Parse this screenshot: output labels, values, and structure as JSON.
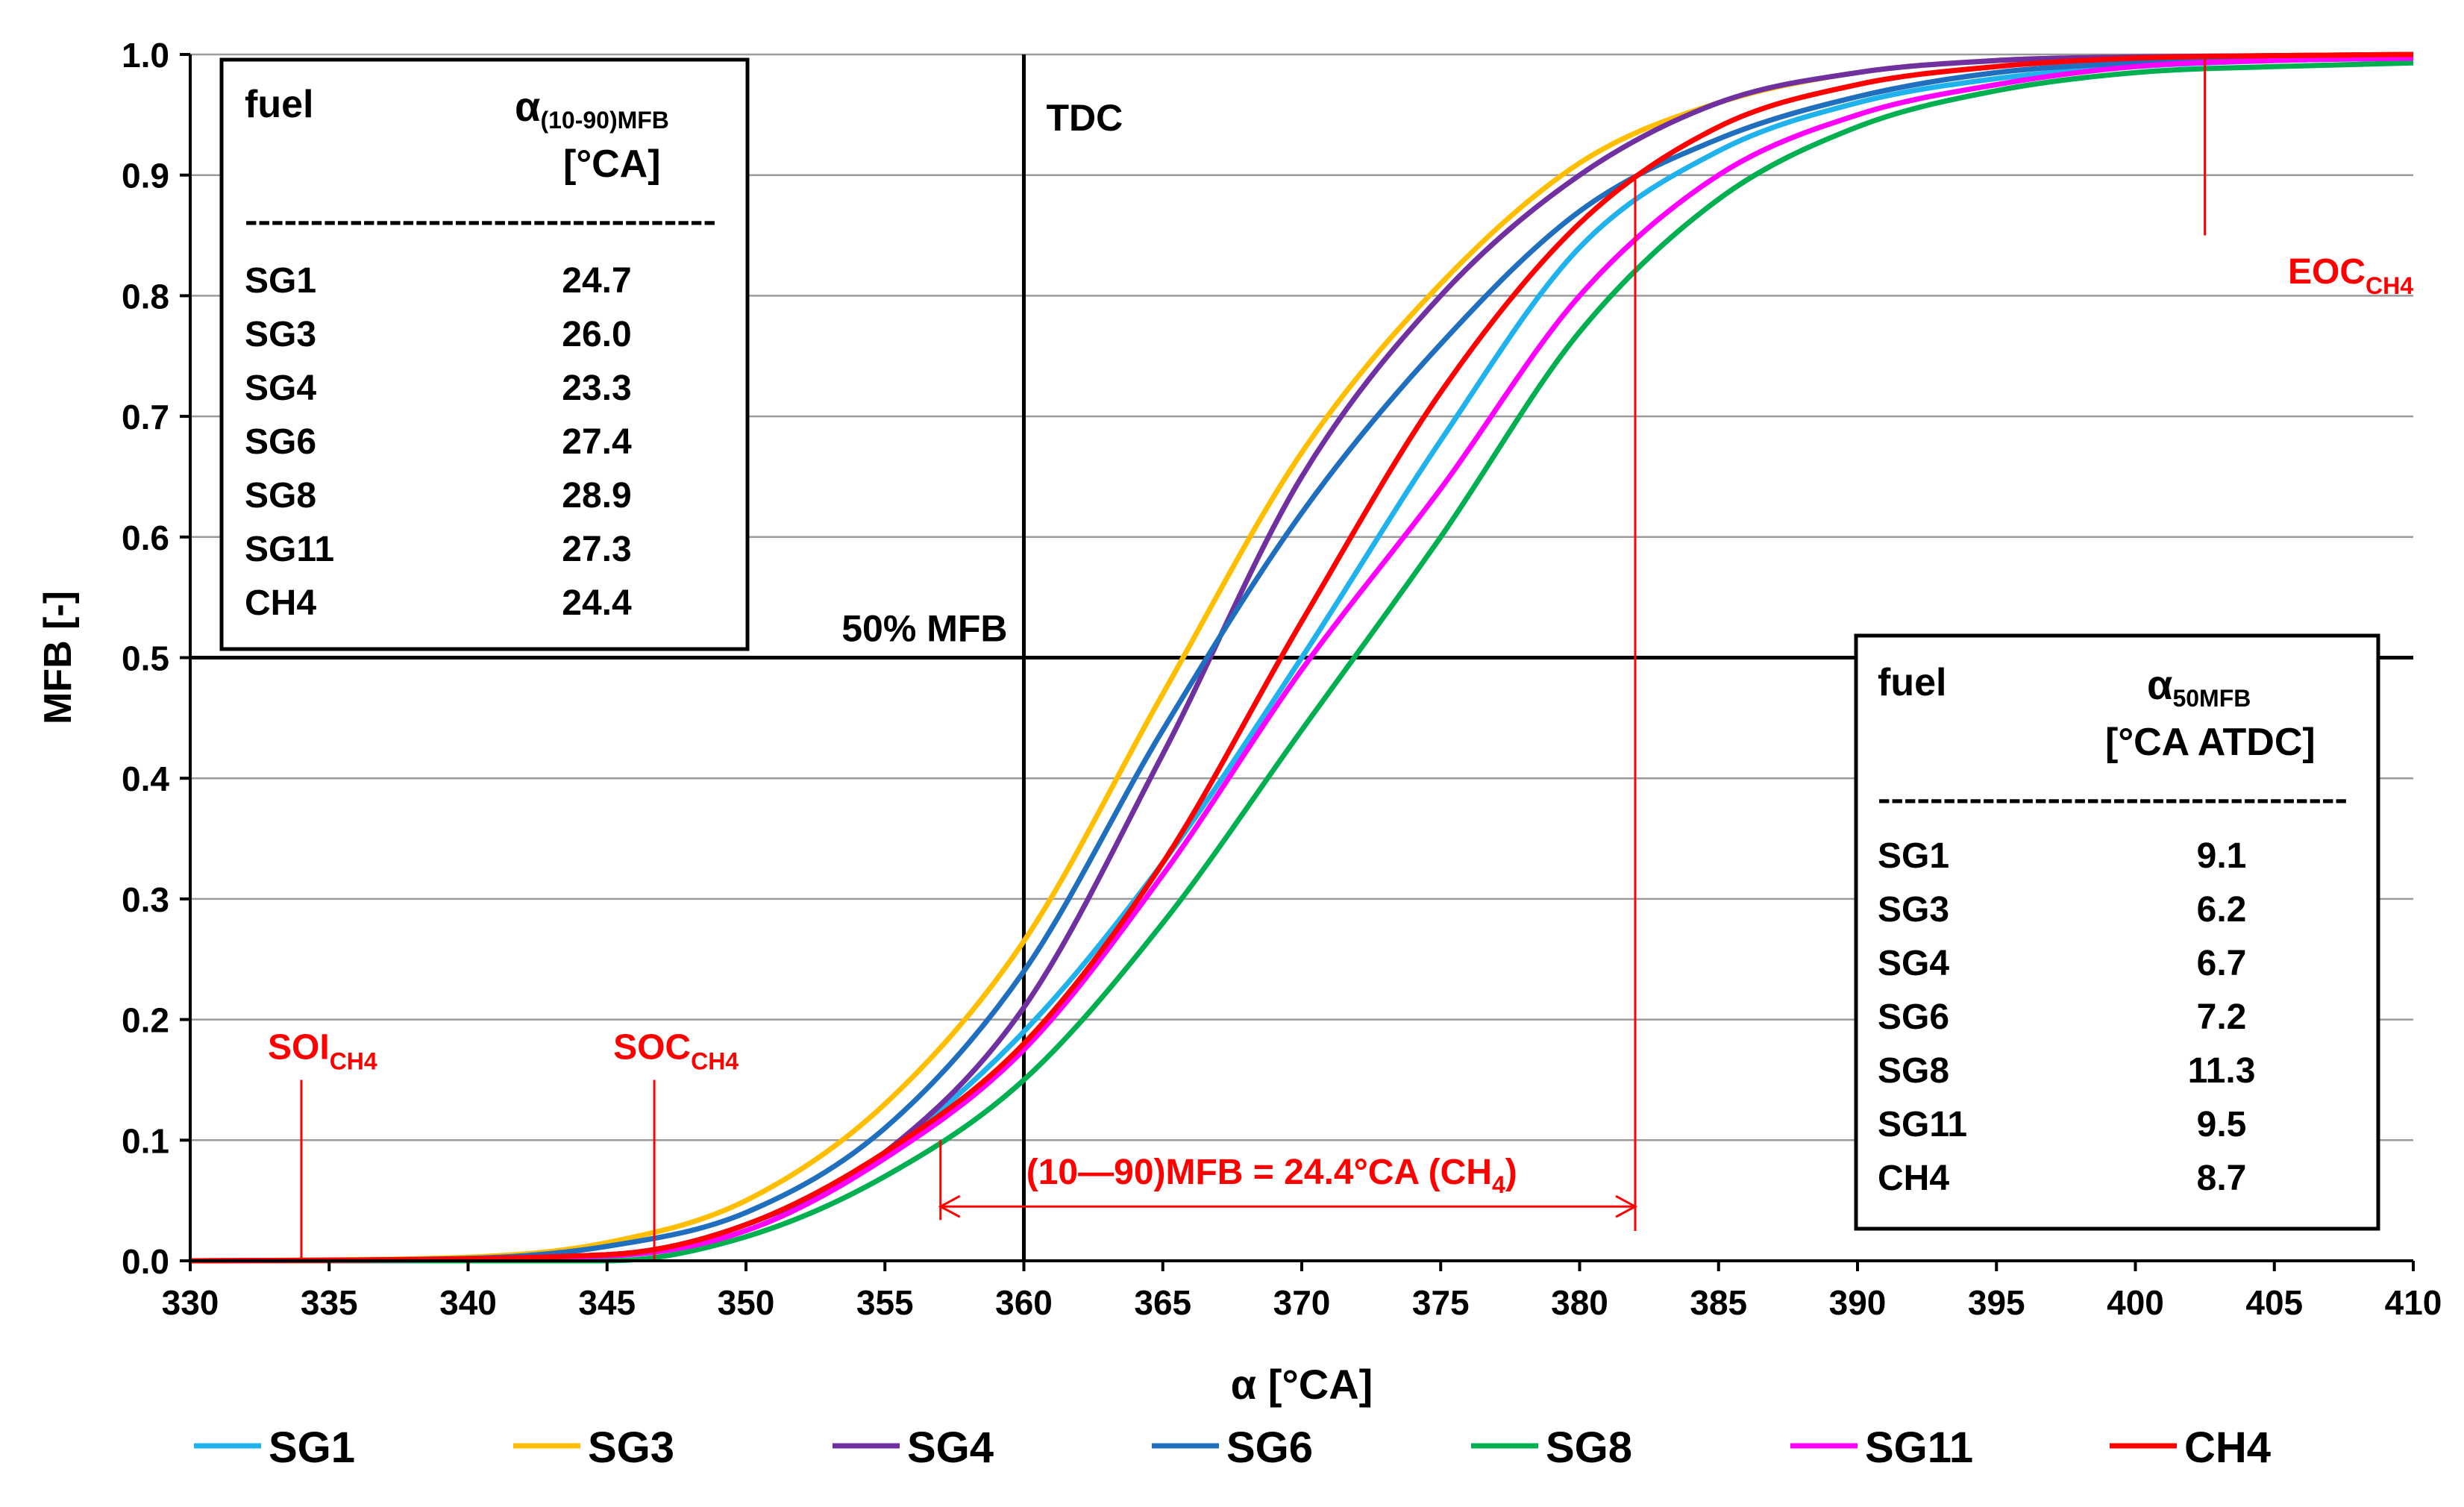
{
  "chart_data": {
    "type": "line",
    "xlabel": "α [°CA]",
    "ylabel": "MFB [-]",
    "xlim": [
      330,
      410
    ],
    "ylim": [
      0,
      1
    ],
    "x_ticks": [
      330,
      335,
      340,
      345,
      350,
      355,
      360,
      365,
      370,
      375,
      380,
      385,
      390,
      395,
      400,
      405,
      410
    ],
    "y_ticks": [
      "0.0",
      "0.1",
      "0.2",
      "0.3",
      "0.4",
      "0.5",
      "0.6",
      "0.7",
      "0.8",
      "0.9",
      "1.0"
    ],
    "grid": "horizontal",
    "legend_position": "bottom",
    "series": [
      {
        "name": "SG1",
        "color": "#1fb2ec",
        "x": [
          330,
          345,
          350,
          355,
          360,
          365,
          370,
          375,
          380,
          385,
          390,
          395,
          400,
          405,
          410
        ],
        "values": [
          0,
          0.005,
          0.03,
          0.09,
          0.19,
          0.33,
          0.5,
          0.68,
          0.84,
          0.92,
          0.96,
          0.98,
          0.99,
          0.995,
          0.997
        ]
      },
      {
        "name": "SG3",
        "color": "#ffbf00",
        "x": [
          330,
          340,
          345,
          350,
          355,
          360,
          365,
          370,
          375,
          380,
          385,
          390,
          395,
          400,
          405,
          410
        ],
        "values": [
          0,
          0.003,
          0.015,
          0.05,
          0.13,
          0.265,
          0.47,
          0.67,
          0.81,
          0.91,
          0.96,
          0.985,
          0.995,
          0.998,
          0.999,
          1.0
        ]
      },
      {
        "name": "SG4",
        "color": "#7030a0",
        "x": [
          330,
          345,
          350,
          355,
          360,
          365,
          370,
          375,
          380,
          385,
          390,
          395,
          400,
          405,
          410
        ],
        "values": [
          0,
          0.005,
          0.03,
          0.09,
          0.21,
          0.42,
          0.65,
          0.8,
          0.9,
          0.96,
          0.985,
          0.995,
          0.998,
          0.999,
          1.0
        ]
      },
      {
        "name": "SG6",
        "color": "#1f6fbe",
        "x": [
          330,
          340,
          345,
          350,
          355,
          360,
          365,
          370,
          375,
          380,
          385,
          390,
          395,
          400,
          405,
          410
        ],
        "values": [
          0,
          0.002,
          0.012,
          0.04,
          0.11,
          0.24,
          0.44,
          0.62,
          0.76,
          0.87,
          0.93,
          0.965,
          0.985,
          0.993,
          0.997,
          0.999
        ]
      },
      {
        "name": "SG8",
        "color": "#00b050",
        "x": [
          330,
          345,
          350,
          355,
          360,
          365,
          370,
          375,
          380,
          385,
          390,
          395,
          400,
          405,
          410
        ],
        "values": [
          0,
          0,
          0.02,
          0.07,
          0.15,
          0.28,
          0.44,
          0.6,
          0.77,
          0.88,
          0.94,
          0.97,
          0.985,
          0.99,
          0.993
        ]
      },
      {
        "name": "SG11",
        "color": "#ff00ff",
        "x": [
          330,
          345,
          350,
          355,
          360,
          365,
          370,
          375,
          380,
          385,
          390,
          395,
          400,
          405,
          410
        ],
        "values": [
          0,
          0.004,
          0.025,
          0.085,
          0.175,
          0.32,
          0.49,
          0.64,
          0.8,
          0.9,
          0.95,
          0.975,
          0.99,
          0.995,
          0.997
        ]
      },
      {
        "name": "CH4",
        "color": "#ff0000",
        "x": [
          330,
          345,
          350,
          355,
          360,
          365,
          370,
          375,
          380,
          385,
          390,
          395,
          400,
          405,
          410
        ],
        "values": [
          0,
          0.005,
          0.03,
          0.09,
          0.18,
          0.33,
          0.53,
          0.72,
          0.86,
          0.94,
          0.975,
          0.99,
          0.997,
          0.999,
          1.0
        ]
      }
    ],
    "reference_lines": {
      "tdc": {
        "x": 360,
        "label": "TDC"
      },
      "mfb50": {
        "y": 0.5,
        "label": "50% MFB"
      }
    },
    "annotations": {
      "soi": {
        "x": 334,
        "y_top": 0.15,
        "label_main": "SOI",
        "label_sub": "CH4"
      },
      "soc": {
        "x": 346.7,
        "y_top": 0.15,
        "label_main": "SOC",
        "label_sub": "CH4"
      },
      "eoc": {
        "x": 402.5,
        "y_bottom": 0.85,
        "label_main": "EOC",
        "label_sub": "CH4"
      },
      "range": {
        "x1": 357,
        "x2": 382,
        "y": 0.045,
        "label_main": "(10—90)MFB = 24.4°CA (CH",
        "label_sub": "4",
        "label_end": ")"
      },
      "tick10": {
        "x": 357,
        "y_top": 0.1
      },
      "tick90": {
        "x": 382,
        "y_top": 0.9
      }
    }
  },
  "table_duration": {
    "header_fuel": "fuel",
    "header_alpha": "α",
    "header_alpha_sub": "(10-90)MFB",
    "header_unit": "[°CA]",
    "divider": "------------------------------------",
    "rows": [
      {
        "fuel": "SG1",
        "value": "24.7"
      },
      {
        "fuel": "SG3",
        "value": "26.0"
      },
      {
        "fuel": "SG4",
        "value": "23.3"
      },
      {
        "fuel": "SG6",
        "value": "27.4"
      },
      {
        "fuel": "SG8",
        "value": "28.9"
      },
      {
        "fuel": "SG11",
        "value": "27.3"
      },
      {
        "fuel": "CH4",
        "value": "24.4"
      }
    ]
  },
  "table_mfb50": {
    "header_fuel": "fuel",
    "header_alpha": "α",
    "header_alpha_sub": "50MFB",
    "header_unit": "[°CA ATDC]",
    "divider": "------------------------------------",
    "rows": [
      {
        "fuel": "SG1",
        "value": "9.1"
      },
      {
        "fuel": "SG3",
        "value": "6.2"
      },
      {
        "fuel": "SG4",
        "value": "6.7"
      },
      {
        "fuel": "SG6",
        "value": "7.2"
      },
      {
        "fuel": "SG8",
        "value": "11.3"
      },
      {
        "fuel": "SG11",
        "value": "9.5"
      },
      {
        "fuel": "CH4",
        "value": "8.7"
      }
    ]
  }
}
